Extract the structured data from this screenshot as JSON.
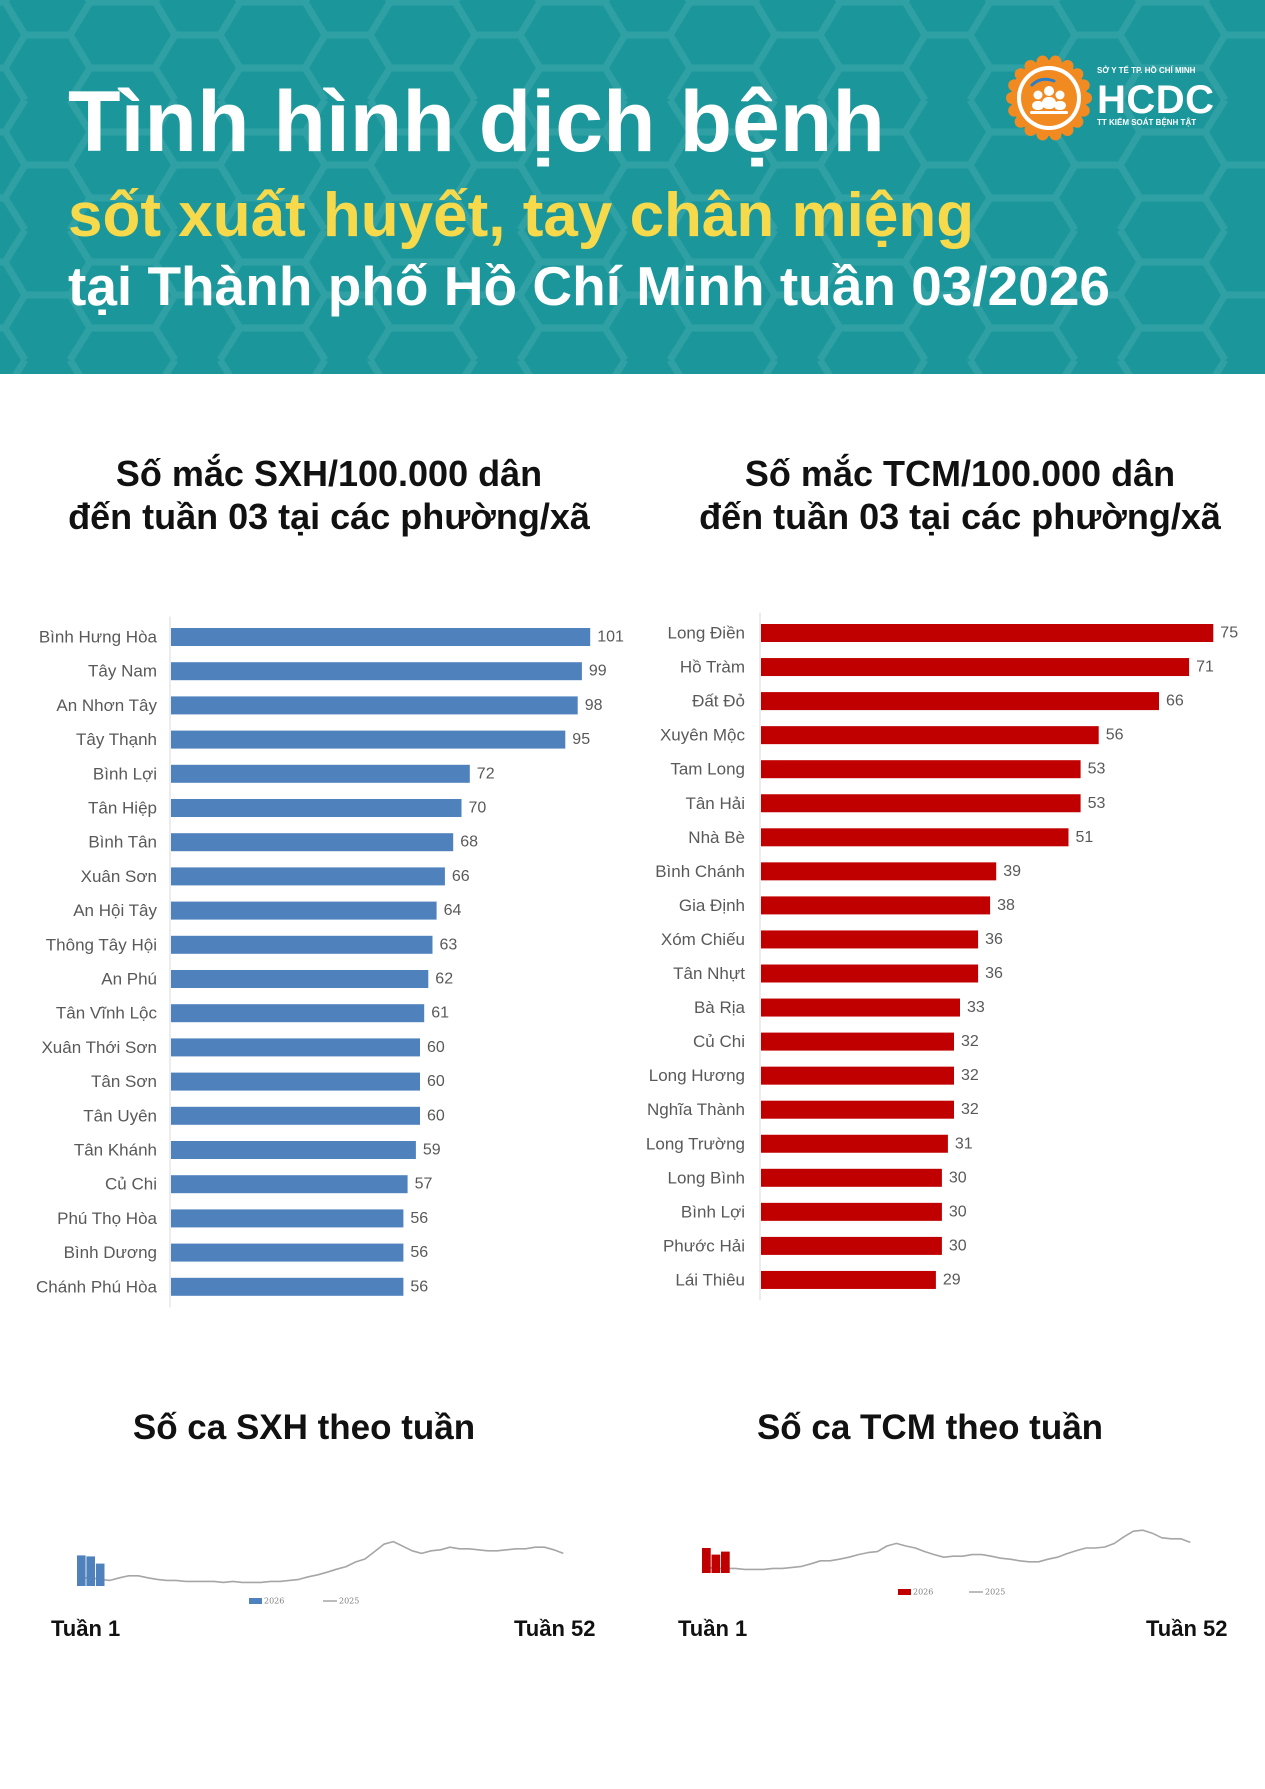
{
  "header": {
    "title": "Tình hình dịch bệnh",
    "subtitle": "sốt xuất huyết, tay chân miệng",
    "location_week": "tại Thành phố Hồ Chí Minh tuần 03/2026",
    "background_color": "#1b979c",
    "title_color": "#ffffff",
    "subtitle_color": "#f7d94c"
  },
  "logo": {
    "top_text": "SỞ Y TẾ TP. HỒ CHÍ MINH",
    "name": "HCDC",
    "bottom_text": "TT KIỂM SOÁT BỆNH TẬT",
    "color": "#f28a22",
    "icon": "people-group-icon"
  },
  "chart_data": [
    {
      "type": "bar",
      "orientation": "horizontal",
      "title": [
        "Số mắc SXH/100.000 dân",
        "đến tuần 03 tại các phường/xã"
      ],
      "categories": [
        "Bình Hưng Hòa",
        "Tây Nam",
        "An Nhơn Tây",
        "Tây Thạnh",
        "Bình Lợi",
        "Tân Hiệp",
        "Bình Tân",
        "Xuân Sơn",
        "An Hội Tây",
        "Thông Tây Hội",
        "An Phú",
        "Tân Vĩnh Lộc",
        "Xuân Thới Sơn",
        "Tân Sơn",
        "Tân Uyên",
        "Tân Khánh",
        "Củ Chi",
        "Phú Thọ Hòa",
        "Bình Dương",
        "Chánh Phú Hòa"
      ],
      "values": [
        101,
        99,
        98,
        95,
        72,
        70,
        68,
        66,
        64,
        63,
        62,
        61,
        60,
        60,
        60,
        59,
        57,
        56,
        56,
        56
      ],
      "color": "#4f81bd",
      "data_labels": true,
      "grid": false
    },
    {
      "type": "bar",
      "orientation": "horizontal",
      "title": [
        "Số mắc TCM/100.000 dân",
        "đến tuần 03 tại các phường/xã"
      ],
      "categories": [
        "Long Điền",
        "Hồ Tràm",
        "Đất Đỏ",
        "Xuyên Mộc",
        "Tam Long",
        "Tân Hải",
        "Nhà Bè",
        "Bình Chánh",
        "Gia Định",
        "Xóm Chiếu",
        "Tân Nhựt",
        "Bà Rịa",
        "Củ Chi",
        "Long Hương",
        "Nghĩa Thành",
        "Long Trường",
        "Long Bình",
        "Bình Lợi",
        "Phước Hải",
        "Lái Thiêu"
      ],
      "values": [
        75,
        71,
        66,
        56,
        53,
        53,
        51,
        39,
        38,
        36,
        36,
        33,
        32,
        32,
        32,
        31,
        30,
        30,
        30,
        29
      ],
      "color": "#c00000",
      "data_labels": true,
      "grid": false
    },
    {
      "type": "line",
      "title": "Số ca SXH theo tuần",
      "x_tick_labels": [
        "Tuần 1",
        "Tuần 52"
      ],
      "x_range": [
        1,
        52
      ],
      "ylim": [
        0,
        100
      ],
      "legend": "bottom",
      "series": [
        {
          "name": "2026",
          "type": "bar",
          "color": "#4f81bd",
          "x": [
            1,
            2,
            3
          ],
          "values": [
            60,
            58,
            44
          ]
        },
        {
          "name": "2025",
          "type": "line",
          "color": "#a6a6a6",
          "values": [
            16,
            16,
            13,
            11,
            16,
            20,
            20,
            16,
            13,
            11,
            11,
            9,
            9,
            9,
            9,
            7,
            9,
            7,
            7,
            7,
            9,
            9,
            11,
            13,
            18,
            22,
            27,
            33,
            38,
            47,
            53,
            67,
            82,
            87,
            78,
            69,
            64,
            69,
            71,
            76,
            73,
            73,
            71,
            69,
            69,
            71,
            73,
            73,
            76,
            76,
            71,
            64
          ]
        }
      ]
    },
    {
      "type": "line",
      "title": "Số ca TCM theo tuần",
      "x_tick_labels": [
        "Tuần 1",
        "Tuần 52"
      ],
      "x_range": [
        1,
        52
      ],
      "ylim": [
        0,
        100
      ],
      "legend": "bottom",
      "series": [
        {
          "name": "2026",
          "type": "bar",
          "color": "#c00000",
          "x": [
            1,
            2,
            3
          ],
          "values": [
            49,
            36,
            42
          ]
        },
        {
          "name": "2025",
          "type": "line",
          "color": "#a6a6a6",
          "values": [
            11,
            9,
            9,
            9,
            7,
            7,
            7,
            9,
            9,
            11,
            13,
            18,
            24,
            24,
            27,
            31,
            36,
            40,
            42,
            53,
            58,
            53,
            49,
            42,
            36,
            31,
            33,
            33,
            36,
            36,
            33,
            29,
            27,
            24,
            22,
            22,
            27,
            31,
            38,
            44,
            49,
            49,
            51,
            58,
            71,
            82,
            84,
            78,
            69,
            67,
            67,
            60
          ]
        }
      ]
    }
  ]
}
